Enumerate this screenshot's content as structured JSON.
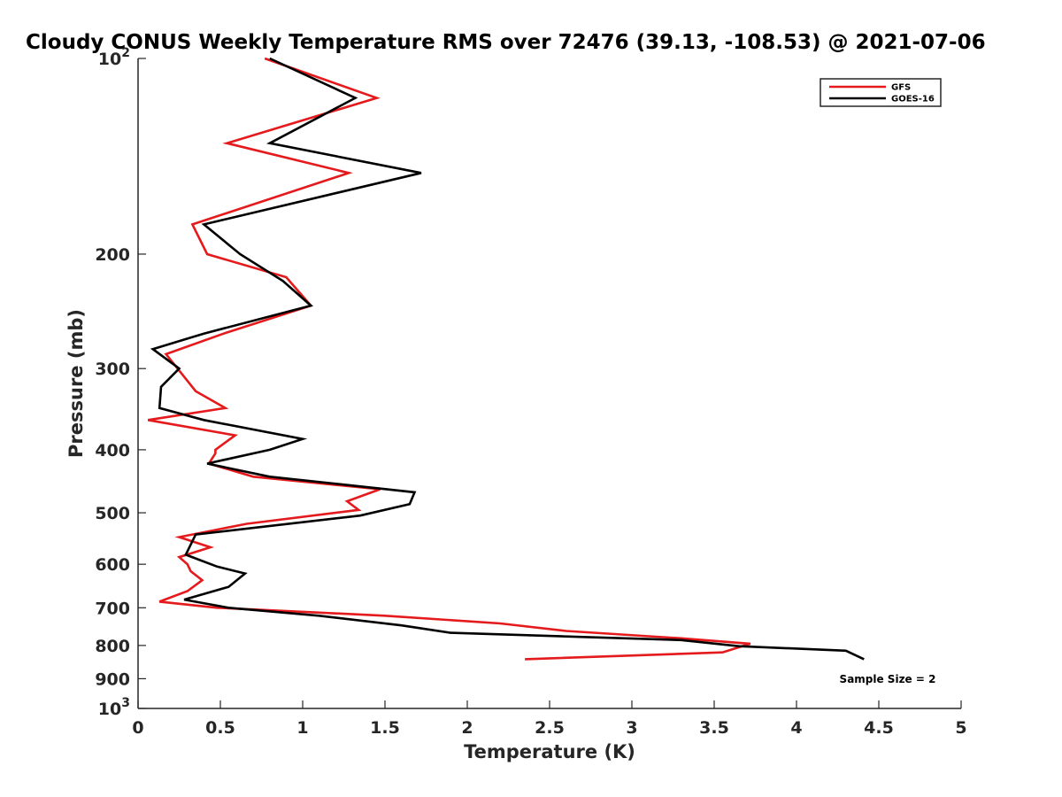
{
  "chart_data": {
    "type": "line",
    "title": "Cloudy CONUS Weekly Temperature RMS over 72476 (39.13, -108.53) @ 2021-07-06",
    "xlabel": "Temperature (K)",
    "ylabel": "Pressure (mb)",
    "xlim": [
      0,
      5
    ],
    "ylim": [
      1000,
      100
    ],
    "y_scale": "log",
    "y_reversed": true,
    "x_ticks": [
      0,
      0.5,
      1,
      1.5,
      2,
      2.5,
      3,
      3.5,
      4,
      4.5,
      5
    ],
    "x_tick_labels": [
      "0",
      "0.5",
      "1",
      "1.5",
      "2",
      "2.5",
      "3",
      "3.5",
      "4",
      "4.5",
      "5"
    ],
    "y_ticks": [
      100,
      200,
      300,
      400,
      500,
      600,
      700,
      800,
      900,
      1000
    ],
    "y_tick_labels": [
      {
        "base": "10",
        "exp": "2"
      },
      {
        "base": "200",
        "exp": ""
      },
      {
        "base": "300",
        "exp": ""
      },
      {
        "base": "400",
        "exp": ""
      },
      {
        "base": "500",
        "exp": ""
      },
      {
        "base": "600",
        "exp": ""
      },
      {
        "base": "700",
        "exp": ""
      },
      {
        "base": "800",
        "exp": ""
      },
      {
        "base": "900",
        "exp": ""
      },
      {
        "base": "10",
        "exp": "3"
      }
    ],
    "grid": false,
    "legend_position": "top-right",
    "annotation": "Sample Size = 2",
    "series": [
      {
        "name": "GFS",
        "color": "#e41a1c",
        "points": [
          [
            0.77,
            100
          ],
          [
            1.45,
            115
          ],
          [
            0.54,
            135
          ],
          [
            1.28,
            150
          ],
          [
            0.33,
            180
          ],
          [
            0.42,
            200
          ],
          [
            0.9,
            217
          ],
          [
            1.05,
            240
          ],
          [
            0.52,
            265
          ],
          [
            0.17,
            285
          ],
          [
            0.35,
            325
          ],
          [
            0.53,
            345
          ],
          [
            0.06,
            360
          ],
          [
            0.59,
            380
          ],
          [
            0.47,
            400
          ],
          [
            0.47,
            405
          ],
          [
            0.43,
            420
          ],
          [
            0.7,
            440
          ],
          [
            1.47,
            460
          ],
          [
            1.27,
            480
          ],
          [
            1.34,
            495
          ],
          [
            0.66,
            520
          ],
          [
            0.25,
            545
          ],
          [
            0.44,
            565
          ],
          [
            0.25,
            585
          ],
          [
            0.3,
            600
          ],
          [
            0.32,
            615
          ],
          [
            0.39,
            635
          ],
          [
            0.3,
            660
          ],
          [
            0.13,
            685
          ],
          [
            0.48,
            700
          ],
          [
            1.5,
            720
          ],
          [
            2.2,
            740
          ],
          [
            2.6,
            760
          ],
          [
            3.3,
            780
          ],
          [
            3.72,
            795
          ],
          [
            3.55,
            820
          ],
          [
            2.35,
            840
          ]
        ]
      },
      {
        "name": "GOES-16",
        "color": "#000000",
        "points": [
          [
            0.8,
            100
          ],
          [
            1.32,
            115
          ],
          [
            0.8,
            135
          ],
          [
            1.72,
            150
          ],
          [
            0.4,
            180
          ],
          [
            0.62,
            200
          ],
          [
            0.88,
            220
          ],
          [
            1.05,
            240
          ],
          [
            0.4,
            265
          ],
          [
            0.09,
            280
          ],
          [
            0.25,
            300
          ],
          [
            0.14,
            320
          ],
          [
            0.13,
            345
          ],
          [
            0.4,
            360
          ],
          [
            1,
            385
          ],
          [
            0.8,
            400
          ],
          [
            0.42,
            420
          ],
          [
            0.8,
            440
          ],
          [
            1.68,
            465
          ],
          [
            1.65,
            485
          ],
          [
            1.35,
            505
          ],
          [
            0.35,
            540
          ],
          [
            0.29,
            580
          ],
          [
            0.48,
            605
          ],
          [
            0.65,
            620
          ],
          [
            0.55,
            650
          ],
          [
            0.28,
            680
          ],
          [
            0.55,
            700
          ],
          [
            1.1,
            720
          ],
          [
            1.6,
            745
          ],
          [
            1.9,
            765
          ],
          [
            3.3,
            785
          ],
          [
            3.65,
            802
          ],
          [
            4.3,
            815
          ],
          [
            4.41,
            840
          ]
        ]
      }
    ]
  }
}
